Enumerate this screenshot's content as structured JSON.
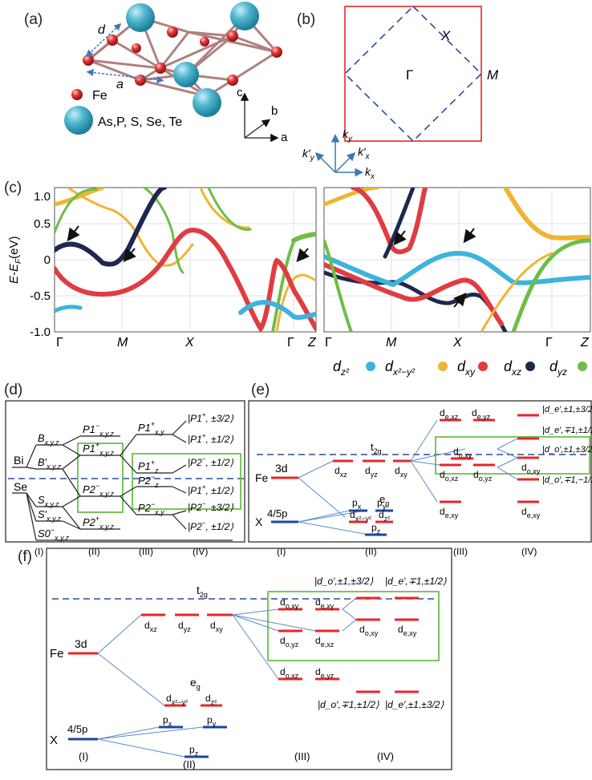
{
  "colors": {
    "dz2": "#3cb4dc",
    "dx2y2": "#f0b432",
    "dxy": "#e03c41",
    "dxz": "#1e2850",
    "dyz": "#6ebe46",
    "red_level": "#e8262a",
    "blue_level": "#1e46a0",
    "dashed": "#1e46a0",
    "green_box": "#6cc04a",
    "bz_border": "#e8262a"
  },
  "panel_a": {
    "label": "(a)",
    "d": "d",
    "a": "a",
    "fe_label": "Fe",
    "chalc_label": "As,P, S, Se, Te",
    "axes": [
      "c",
      "b",
      "a"
    ]
  },
  "panel_b": {
    "label": "(b)",
    "gamma": "Γ",
    "x": "X",
    "m": "M",
    "ky": "k",
    "ky_sub": "y",
    "kpy": "k′",
    "kpy_sub": "y",
    "kpx": "k′",
    "kpx_sub": "x",
    "kx": "k",
    "kx_sub": "x"
  },
  "panel_c": {
    "label": "(c)",
    "ylabel_main": "E-E",
    "ylabel_sub": "F",
    "ylabel_unit": "(eV)",
    "yticks": [
      "1.0",
      "0.5",
      "0",
      "-0.5",
      "-1.0"
    ],
    "xticks_left": [
      "Γ",
      "M",
      "X",
      "Γ",
      "Z"
    ],
    "xticks_right": [
      "Γ",
      "M",
      "X",
      "Γ",
      "Z"
    ],
    "legend": [
      {
        "base": "d",
        "sub": "z²",
        "color": "#3cb4dc"
      },
      {
        "base": "d",
        "sub": "x²−y²",
        "color": "#f0b432"
      },
      {
        "base": "d",
        "sub": "xy",
        "color": "#e03c41"
      },
      {
        "base": "d",
        "sub": "xz",
        "color": "#1e2850"
      },
      {
        "base": "d",
        "sub": "yz",
        "color": "#6ebe46"
      }
    ]
  },
  "panel_d": {
    "label": "(d)",
    "bi": "Bi",
    "se": "Se",
    "col1": [
      {
        "text": "B",
        "sub": "x,y,z"
      },
      {
        "text": "B′",
        "sub": "x,y,z"
      },
      {
        "text": "S",
        "sub": "x,y,z"
      },
      {
        "text": "S′",
        "sub": "x,y,z"
      },
      {
        "text": "S0",
        "sup": "−",
        "sub": "x,y,z"
      }
    ],
    "col2": [
      {
        "text": "P1",
        "sup": "−",
        "sub": "x,y,z"
      },
      {
        "text": "P1",
        "sup": "+",
        "sub": "x,y,z"
      },
      {
        "text": "P2",
        "sup": "−",
        "sub": "x,y,z"
      },
      {
        "text": "P2",
        "sup": "+",
        "sub": "x,y,z"
      }
    ],
    "col3": [
      {
        "text": "P1",
        "sup": "+",
        "sub": "x,y"
      },
      {
        "text": "P1",
        "sup": "+",
        "sub": "z"
      },
      {
        "text": "P2",
        "sup": "−",
        "sub": "z"
      },
      {
        "text": "P2",
        "sup": "−",
        "sub": "x,y"
      }
    ],
    "col4": [
      {
        "text": "|P1",
        "sup": "+",
        "tail": ", ±3/2⟩"
      },
      {
        "text": "|P1",
        "sup": "+",
        "tail": ", ±1/2⟩"
      },
      {
        "text": "|P2",
        "sup": "−",
        "tail": ", ±1/2⟩"
      },
      {
        "text": "|P1",
        "sup": "+",
        "tail": ", ±1/2⟩"
      },
      {
        "text": "|P2",
        "sup": "−",
        "tail": ", ±3/2⟩"
      },
      {
        "text": "|P2",
        "sup": "−",
        "tail": ", ±1/2⟩"
      }
    ],
    "roman": [
      "(I)",
      "(II)",
      "(III)",
      "(IV)"
    ]
  },
  "panel_e": {
    "label": "(e)",
    "fe": "Fe",
    "x": "X",
    "d3": "3d",
    "p45": "4/5p",
    "t2g": "t",
    "t2g_sub": "2g",
    "eg": "e",
    "eg_sub": "g",
    "orbitals": {
      "dxz": "xz",
      "dyz": "yz",
      "dxy": "xy",
      "dx2y2": "x²−y²",
      "dz2": "z²",
      "px": "x",
      "py": "y",
      "pz": "z"
    },
    "col3": [
      "e,xz",
      "e,yz",
      "o,xy",
      "o,xz",
      "o,yz",
      "e,xy"
    ],
    "col4": [
      "|d",
      "o,xy",
      "e,xy"
    ],
    "kets": [
      "|d_e′,±1,±3/2⟩",
      "|d_e′,∓1,±1/2⟩",
      "|d_o′,±1,±3/2⟩",
      "|d_o′,∓1,−1/2⟩"
    ],
    "roman": [
      "(I)",
      "(II)",
      "(III)",
      "(IV)"
    ]
  },
  "panel_f": {
    "label": "(f)",
    "fe": "Fe",
    "x": "X",
    "d3": "3d",
    "p45": "4/5p",
    "t2g": "t",
    "t2g_sub": "2g",
    "eg": "e",
    "eg_sub": "g",
    "col3": [
      "o,xy",
      "e,xy",
      "o,yz",
      "e,xz",
      "o,xz",
      "e,yz"
    ],
    "col4": [
      "o,xy",
      "e,xy"
    ],
    "kets": [
      "|d_o′,±1,±3/2⟩",
      "|d_e′,∓1,±1/2⟩",
      "|d_o′,∓1,±1/2⟩",
      "|d_e′,±1,±3/2⟩"
    ],
    "roman": [
      "(I)",
      "(II)",
      "(III)",
      "(IV)"
    ]
  }
}
